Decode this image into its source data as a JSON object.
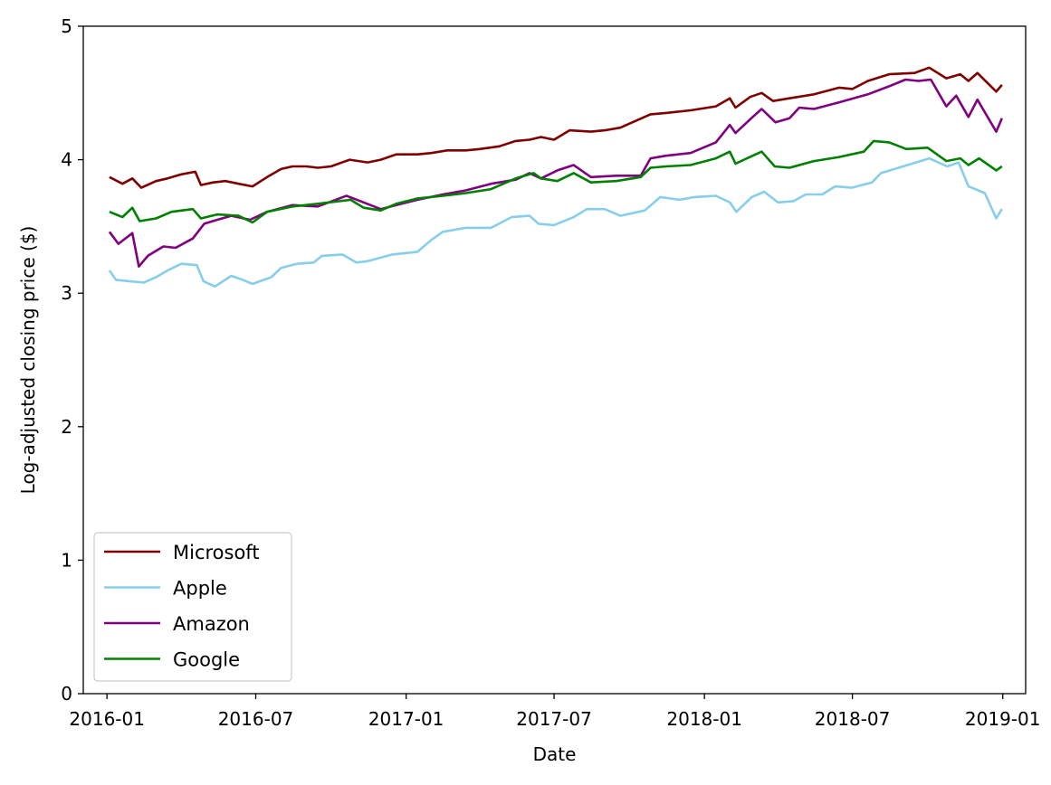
{
  "chart_data": {
    "type": "line",
    "title": "",
    "xlabel": "Date",
    "ylabel": "Log-adjusted closing price ($)",
    "xlim": [
      "2015-12-03",
      "2019-01-29"
    ],
    "ylim": [
      0,
      5
    ],
    "x_ticks": [
      "2016-01",
      "2016-07",
      "2017-01",
      "2017-07",
      "2018-01",
      "2018-07",
      "2019-01"
    ],
    "y_ticks": [
      0,
      1,
      2,
      3,
      4,
      5
    ],
    "grid": false,
    "legend_position": "lower-left",
    "series": [
      {
        "name": "Microsoft",
        "color": "#800000",
        "points": [
          [
            "2016-01-04",
            3.87
          ],
          [
            "2016-01-20",
            3.82
          ],
          [
            "2016-02-01",
            3.86
          ],
          [
            "2016-02-12",
            3.79
          ],
          [
            "2016-03-01",
            3.84
          ],
          [
            "2016-03-15",
            3.86
          ],
          [
            "2016-04-01",
            3.89
          ],
          [
            "2016-04-18",
            3.91
          ],
          [
            "2016-04-25",
            3.81
          ],
          [
            "2016-05-10",
            3.83
          ],
          [
            "2016-05-25",
            3.84
          ],
          [
            "2016-06-10",
            3.82
          ],
          [
            "2016-06-27",
            3.8
          ],
          [
            "2016-07-15",
            3.87
          ],
          [
            "2016-08-01",
            3.93
          ],
          [
            "2016-08-15",
            3.95
          ],
          [
            "2016-09-01",
            3.95
          ],
          [
            "2016-09-15",
            3.94
          ],
          [
            "2016-10-01",
            3.95
          ],
          [
            "2016-10-24",
            4.0
          ],
          [
            "2016-11-15",
            3.98
          ],
          [
            "2016-12-01",
            4.0
          ],
          [
            "2016-12-20",
            4.04
          ],
          [
            "2017-01-15",
            4.04
          ],
          [
            "2017-02-01",
            4.05
          ],
          [
            "2017-02-20",
            4.07
          ],
          [
            "2017-03-15",
            4.07
          ],
          [
            "2017-04-01",
            4.08
          ],
          [
            "2017-04-25",
            4.1
          ],
          [
            "2017-05-15",
            4.14
          ],
          [
            "2017-06-01",
            4.15
          ],
          [
            "2017-06-15",
            4.17
          ],
          [
            "2017-07-01",
            4.15
          ],
          [
            "2017-07-20",
            4.22
          ],
          [
            "2017-08-15",
            4.21
          ],
          [
            "2017-09-01",
            4.22
          ],
          [
            "2017-09-20",
            4.24
          ],
          [
            "2017-10-27",
            4.34
          ],
          [
            "2017-11-15",
            4.35
          ],
          [
            "2017-12-15",
            4.37
          ],
          [
            "2018-01-15",
            4.4
          ],
          [
            "2018-02-01",
            4.46
          ],
          [
            "2018-02-08",
            4.39
          ],
          [
            "2018-02-26",
            4.47
          ],
          [
            "2018-03-12",
            4.5
          ],
          [
            "2018-03-26",
            4.44
          ],
          [
            "2018-04-15",
            4.46
          ],
          [
            "2018-05-15",
            4.49
          ],
          [
            "2018-06-15",
            4.54
          ],
          [
            "2018-07-01",
            4.53
          ],
          [
            "2018-07-20",
            4.59
          ],
          [
            "2018-08-15",
            4.64
          ],
          [
            "2018-09-15",
            4.65
          ],
          [
            "2018-10-03",
            4.69
          ],
          [
            "2018-10-24",
            4.61
          ],
          [
            "2018-11-10",
            4.64
          ],
          [
            "2018-11-20",
            4.59
          ],
          [
            "2018-12-01",
            4.65
          ],
          [
            "2018-12-24",
            4.51
          ],
          [
            "2018-12-31",
            4.56
          ]
        ]
      },
      {
        "name": "Apple",
        "color": "#87ceeb",
        "points": [
          [
            "2016-01-04",
            3.17
          ],
          [
            "2016-01-12",
            3.1
          ],
          [
            "2016-01-28",
            3.09
          ],
          [
            "2016-02-15",
            3.08
          ],
          [
            "2016-03-01",
            3.12
          ],
          [
            "2016-03-15",
            3.17
          ],
          [
            "2016-04-01",
            3.22
          ],
          [
            "2016-04-20",
            3.21
          ],
          [
            "2016-04-28",
            3.09
          ],
          [
            "2016-05-12",
            3.05
          ],
          [
            "2016-06-01",
            3.13
          ],
          [
            "2016-06-15",
            3.1
          ],
          [
            "2016-06-27",
            3.07
          ],
          [
            "2016-07-20",
            3.12
          ],
          [
            "2016-08-01",
            3.19
          ],
          [
            "2016-08-20",
            3.22
          ],
          [
            "2016-09-10",
            3.23
          ],
          [
            "2016-09-20",
            3.28
          ],
          [
            "2016-10-15",
            3.29
          ],
          [
            "2016-11-01",
            3.23
          ],
          [
            "2016-11-15",
            3.24
          ],
          [
            "2016-12-15",
            3.29
          ],
          [
            "2017-01-15",
            3.31
          ],
          [
            "2017-02-01",
            3.4
          ],
          [
            "2017-02-15",
            3.46
          ],
          [
            "2017-03-15",
            3.49
          ],
          [
            "2017-04-15",
            3.49
          ],
          [
            "2017-05-10",
            3.57
          ],
          [
            "2017-06-01",
            3.58
          ],
          [
            "2017-06-12",
            3.52
          ],
          [
            "2017-07-01",
            3.51
          ],
          [
            "2017-07-25",
            3.57
          ],
          [
            "2017-08-10",
            3.63
          ],
          [
            "2017-09-01",
            3.63
          ],
          [
            "2017-09-20",
            3.58
          ],
          [
            "2017-10-20",
            3.62
          ],
          [
            "2017-11-08",
            3.72
          ],
          [
            "2017-12-01",
            3.7
          ],
          [
            "2017-12-20",
            3.72
          ],
          [
            "2018-01-15",
            3.73
          ],
          [
            "2018-02-01",
            3.68
          ],
          [
            "2018-02-09",
            3.61
          ],
          [
            "2018-02-28",
            3.72
          ],
          [
            "2018-03-15",
            3.76
          ],
          [
            "2018-04-01",
            3.68
          ],
          [
            "2018-04-20",
            3.69
          ],
          [
            "2018-05-05",
            3.74
          ],
          [
            "2018-05-25",
            3.74
          ],
          [
            "2018-06-10",
            3.8
          ],
          [
            "2018-06-30",
            3.79
          ],
          [
            "2018-07-25",
            3.83
          ],
          [
            "2018-08-05",
            3.9
          ],
          [
            "2018-09-01",
            3.95
          ],
          [
            "2018-10-03",
            4.01
          ],
          [
            "2018-10-25",
            3.95
          ],
          [
            "2018-11-08",
            3.98
          ],
          [
            "2018-11-20",
            3.8
          ],
          [
            "2018-12-10",
            3.75
          ],
          [
            "2018-12-24",
            3.56
          ],
          [
            "2018-12-31",
            3.63
          ]
        ]
      },
      {
        "name": "Amazon",
        "color": "#800080",
        "points": [
          [
            "2016-01-04",
            3.46
          ],
          [
            "2016-01-15",
            3.37
          ],
          [
            "2016-02-01",
            3.45
          ],
          [
            "2016-02-09",
            3.2
          ],
          [
            "2016-02-20",
            3.28
          ],
          [
            "2016-03-10",
            3.35
          ],
          [
            "2016-03-25",
            3.34
          ],
          [
            "2016-04-15",
            3.41
          ],
          [
            "2016-04-29",
            3.52
          ],
          [
            "2016-05-15",
            3.55
          ],
          [
            "2016-06-01",
            3.58
          ],
          [
            "2016-06-24",
            3.55
          ],
          [
            "2016-07-15",
            3.61
          ],
          [
            "2016-08-15",
            3.66
          ],
          [
            "2016-09-15",
            3.65
          ],
          [
            "2016-10-20",
            3.73
          ],
          [
            "2016-11-10",
            3.68
          ],
          [
            "2016-12-01",
            3.63
          ],
          [
            "2016-12-20",
            3.66
          ],
          [
            "2017-01-15",
            3.7
          ],
          [
            "2017-02-15",
            3.74
          ],
          [
            "2017-03-15",
            3.77
          ],
          [
            "2017-04-15",
            3.82
          ],
          [
            "2017-05-15",
            3.85
          ],
          [
            "2017-06-01",
            3.9
          ],
          [
            "2017-06-15",
            3.86
          ],
          [
            "2017-07-05",
            3.92
          ],
          [
            "2017-07-25",
            3.96
          ],
          [
            "2017-08-15",
            3.87
          ],
          [
            "2017-09-15",
            3.88
          ],
          [
            "2017-10-15",
            3.88
          ],
          [
            "2017-10-27",
            4.01
          ],
          [
            "2017-11-15",
            4.03
          ],
          [
            "2017-12-15",
            4.05
          ],
          [
            "2018-01-15",
            4.13
          ],
          [
            "2018-02-01",
            4.26
          ],
          [
            "2018-02-08",
            4.2
          ],
          [
            "2018-03-01",
            4.32
          ],
          [
            "2018-03-12",
            4.38
          ],
          [
            "2018-03-29",
            4.28
          ],
          [
            "2018-04-15",
            4.31
          ],
          [
            "2018-04-27",
            4.39
          ],
          [
            "2018-05-15",
            4.38
          ],
          [
            "2018-06-15",
            4.43
          ],
          [
            "2018-07-20",
            4.49
          ],
          [
            "2018-08-15",
            4.55
          ],
          [
            "2018-09-04",
            4.6
          ],
          [
            "2018-09-20",
            4.59
          ],
          [
            "2018-10-05",
            4.6
          ],
          [
            "2018-10-24",
            4.4
          ],
          [
            "2018-11-05",
            4.48
          ],
          [
            "2018-11-20",
            4.32
          ],
          [
            "2018-12-01",
            4.45
          ],
          [
            "2018-12-24",
            4.21
          ],
          [
            "2018-12-31",
            4.31
          ]
        ]
      },
      {
        "name": "Google",
        "color": "#008000",
        "points": [
          [
            "2016-01-04",
            3.61
          ],
          [
            "2016-01-20",
            3.57
          ],
          [
            "2016-02-01",
            3.64
          ],
          [
            "2016-02-10",
            3.54
          ],
          [
            "2016-03-01",
            3.56
          ],
          [
            "2016-03-20",
            3.61
          ],
          [
            "2016-04-15",
            3.63
          ],
          [
            "2016-04-25",
            3.56
          ],
          [
            "2016-05-15",
            3.59
          ],
          [
            "2016-06-10",
            3.58
          ],
          [
            "2016-06-27",
            3.53
          ],
          [
            "2016-07-15",
            3.61
          ],
          [
            "2016-08-15",
            3.65
          ],
          [
            "2016-09-15",
            3.67
          ],
          [
            "2016-10-25",
            3.7
          ],
          [
            "2016-11-10",
            3.64
          ],
          [
            "2016-12-01",
            3.62
          ],
          [
            "2016-12-20",
            3.67
          ],
          [
            "2017-01-15",
            3.71
          ],
          [
            "2017-02-15",
            3.73
          ],
          [
            "2017-03-15",
            3.75
          ],
          [
            "2017-04-15",
            3.78
          ],
          [
            "2017-05-15",
            3.86
          ],
          [
            "2017-06-06",
            3.9
          ],
          [
            "2017-06-15",
            3.86
          ],
          [
            "2017-07-05",
            3.84
          ],
          [
            "2017-07-25",
            3.9
          ],
          [
            "2017-08-15",
            3.83
          ],
          [
            "2017-09-15",
            3.84
          ],
          [
            "2017-10-15",
            3.87
          ],
          [
            "2017-10-27",
            3.94
          ],
          [
            "2017-11-15",
            3.95
          ],
          [
            "2017-12-15",
            3.96
          ],
          [
            "2018-01-15",
            4.01
          ],
          [
            "2018-02-01",
            4.06
          ],
          [
            "2018-02-08",
            3.97
          ],
          [
            "2018-03-01",
            4.03
          ],
          [
            "2018-03-12",
            4.06
          ],
          [
            "2018-03-28",
            3.95
          ],
          [
            "2018-04-15",
            3.94
          ],
          [
            "2018-05-15",
            3.99
          ],
          [
            "2018-06-15",
            4.02
          ],
          [
            "2018-07-15",
            4.06
          ],
          [
            "2018-07-27",
            4.14
          ],
          [
            "2018-08-15",
            4.13
          ],
          [
            "2018-09-05",
            4.08
          ],
          [
            "2018-10-01",
            4.09
          ],
          [
            "2018-10-24",
            3.99
          ],
          [
            "2018-11-10",
            4.01
          ],
          [
            "2018-11-20",
            3.96
          ],
          [
            "2018-12-03",
            4.01
          ],
          [
            "2018-12-24",
            3.92
          ],
          [
            "2018-12-31",
            3.95
          ]
        ]
      }
    ]
  }
}
